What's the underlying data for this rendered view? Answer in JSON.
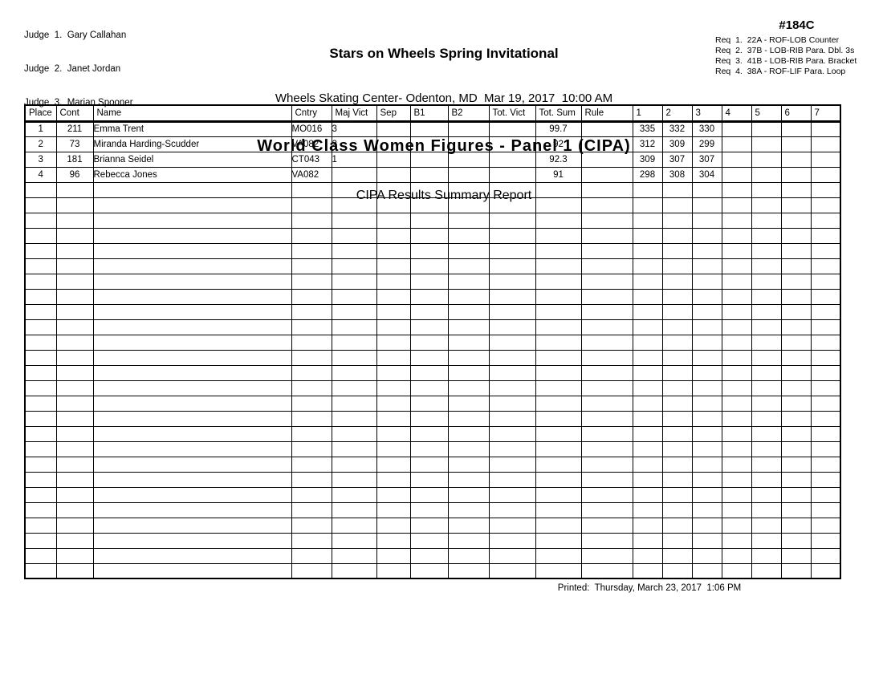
{
  "judges": [
    "Judge  1.  Gary Callahan",
    "Judge  2.  Janet Jordan",
    "Judge  3.  Marian Spooner"
  ],
  "header": {
    "title": "Stars on Wheels Spring Invitational",
    "venue_line": "Wheels Skating Center- Odenton, MD  Mar 19, 2017  10:00 AM",
    "event_title": "World Class Women Figures - Panel 1 (CIPA)",
    "report_title": "CIPA Results Summary Report",
    "event_number": "#184C",
    "requirements": [
      "Req  1.  22A - ROF-LOB Counter",
      "Req  2.  37B - LOB-RIB Para. Dbl. 3s",
      "Req  3.  41B - LOB-RIB Para. Bracket",
      "Req  4.  38A - ROF-LIF Para. Loop"
    ]
  },
  "table": {
    "columns": [
      "Place",
      "Cont",
      "Name",
      "Cntry",
      "Maj Vict",
      "Sep",
      "B1",
      "B2",
      "Tot. Vict",
      "Tot. Sum",
      "Rule",
      "1",
      "2",
      "3",
      "4",
      "5",
      "6",
      "7"
    ],
    "rows": [
      [
        "1",
        "211",
        "Emma Trent",
        "MO016",
        "3",
        "",
        "",
        "",
        "",
        "99.7",
        "",
        "335",
        "332",
        "330",
        "",
        "",
        "",
        ""
      ],
      [
        "2",
        "73",
        "Miranda Harding-Scudder",
        "VA082",
        "2",
        "",
        "",
        "",
        "",
        "92",
        "",
        "312",
        "309",
        "299",
        "",
        "",
        "",
        ""
      ],
      [
        "3",
        "181",
        "Brianna Seidel",
        "CT043",
        "1",
        "",
        "",
        "",
        "",
        "92.3",
        "",
        "309",
        "307",
        "307",
        "",
        "",
        "",
        ""
      ],
      [
        "4",
        "96",
        "Rebecca Jones",
        "VA082",
        "",
        "",
        "",
        "",
        "",
        "91",
        "",
        "298",
        "308",
        "304",
        "",
        "",
        "",
        ""
      ]
    ],
    "empty_rows": 26
  },
  "footer": {
    "printed": "Printed:  Thursday, March 23, 2017  1:06 PM"
  },
  "colors": {
    "text": "#000000",
    "background": "#ffffff",
    "grid": "#000000"
  }
}
